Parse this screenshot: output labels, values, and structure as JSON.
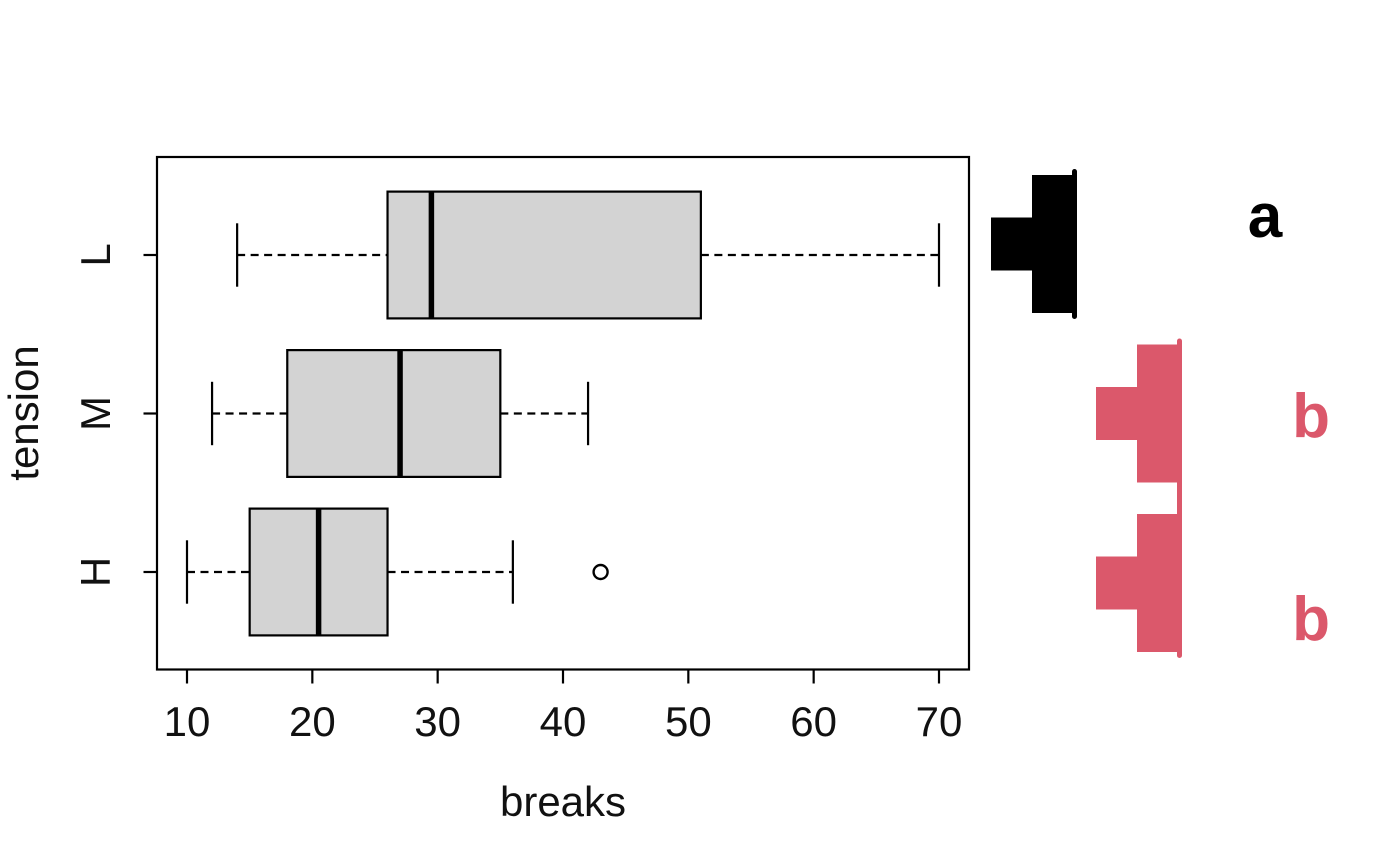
{
  "page": {
    "background": "#ffffff"
  },
  "chart_data": {
    "type": "boxplot",
    "orientation": "horizontal",
    "title": "",
    "xlabel": "breaks",
    "ylabel": "tension",
    "x_ticks": [
      "10",
      "20",
      "30",
      "40",
      "50",
      "60",
      "70"
    ],
    "xlim": [
      7.6,
      72.4
    ],
    "grid": false,
    "legend": false,
    "box_fill": "#d3d3d3",
    "box_stroke": "#000000",
    "categories_top_to_bottom": [
      "L",
      "M",
      "H"
    ],
    "groups": [
      {
        "label": "L",
        "whisker_low": 14,
        "q1": 26,
        "median": 29.5,
        "q3": 51,
        "whisker_high": 70,
        "outliers": [],
        "cld_letter": "a",
        "color": "#000000"
      },
      {
        "label": "M",
        "whisker_low": 12,
        "q1": 18,
        "median": 27,
        "q3": 35,
        "whisker_high": 42,
        "outliers": [],
        "cld_letter": "b",
        "color": "#db586b"
      },
      {
        "label": "H",
        "whisker_low": 10,
        "q1": 15,
        "median": 20.5,
        "q3": 26,
        "whisker_high": 36,
        "outliers": [
          43
        ],
        "cld_letter": "b",
        "color": "#db586b"
      }
    ],
    "significance_ts": [
      {
        "letter": "a",
        "color": "#000000",
        "rows": [
          "L"
        ]
      },
      {
        "letter": "b",
        "color": "#db586b",
        "rows": [
          "M",
          "H"
        ]
      }
    ]
  }
}
